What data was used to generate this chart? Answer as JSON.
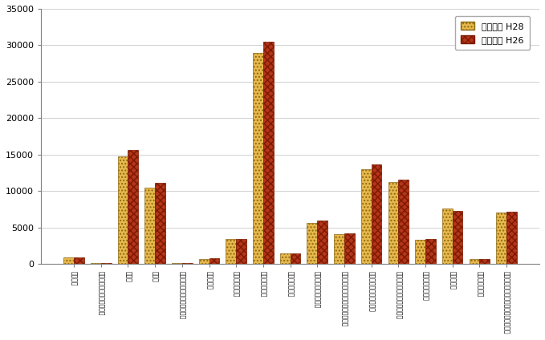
{
  "categories": [
    "農林漁業",
    "鉱業，採石業，砂利採取業",
    "建設業",
    "製造業",
    "電気・ガス・熱供給・水道業",
    "情報通信業",
    "運輸業，郵便業",
    "卸売業，小売業",
    "金融業，保険業",
    "不動産業，物品賃貸業",
    "学術研究，専門・技術サービス業",
    "宿泊業，飲食サービス業",
    "生活関連サービス業，娯楽業",
    "教育，学習支援業",
    "医療，福祉",
    "複合サービス業",
    "サービス業（他に分類されないもの）"
  ],
  "h28_values": [
    900,
    150,
    14800,
    10500,
    200,
    700,
    3400,
    29000,
    1500,
    5700,
    4100,
    13000,
    11200,
    3300,
    7600,
    700,
    7100
  ],
  "h26_values": [
    900,
    200,
    15700,
    11100,
    200,
    800,
    3400,
    30500,
    1500,
    6000,
    4200,
    13700,
    11600,
    3400,
    7300,
    700,
    7200
  ],
  "legend_h28": "事業所数 H28",
  "legend_h26": "事業所数 H26",
  "ylim": [
    0,
    35000
  ],
  "yticks": [
    0,
    5000,
    10000,
    15000,
    20000,
    25000,
    30000,
    35000
  ],
  "bar_color_h28": "#E8B84B",
  "bar_color_h26": "#B5341A",
  "bg_color": "#FFFFFF",
  "grid_color": "#D0D0D0",
  "bar_width": 0.38
}
